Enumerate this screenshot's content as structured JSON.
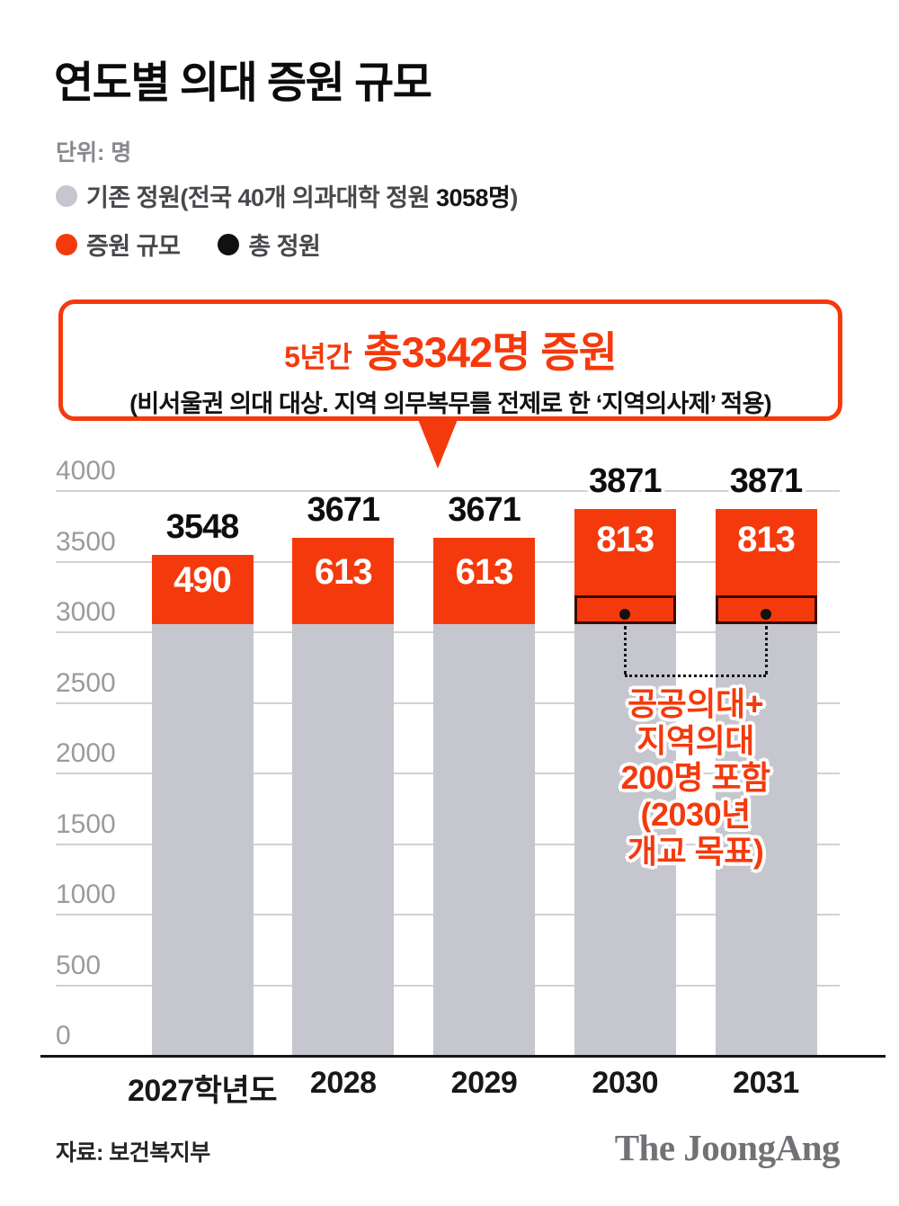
{
  "header": {
    "title": "연도별 의대 증원 규모",
    "unit_label": "단위: 명",
    "legend": {
      "existing": {
        "prefix": "기존 정원(전국 40개 의과대학 정원 ",
        "bold": "3058명",
        "suffix": ")",
        "color": "#c5c6ce"
      },
      "increase": {
        "label": "증원 규모",
        "color": "#f43a0d"
      },
      "total": {
        "label": "총 정원",
        "color": "#111111"
      }
    }
  },
  "callout": {
    "period_label": "5년간",
    "headline": "총3342명 증원",
    "subline": "(비서울권 의대 대상. 지역 의무복무를 전제로 한 ‘지역의사제’ 적용)",
    "border_color": "#f43a0d"
  },
  "chart_data": {
    "type": "bar",
    "stacked": true,
    "title": "연도별 의대 증원 규모",
    "unit": "명",
    "categories": [
      "2027학년도",
      "2028",
      "2029",
      "2030",
      "2031"
    ],
    "series": [
      {
        "name": "기존 정원",
        "color": "#c5c6ce",
        "values": [
          3058,
          3058,
          3058,
          3058,
          3058
        ]
      },
      {
        "name": "증원 규모",
        "color": "#f43a0d",
        "values": [
          490,
          613,
          613,
          813,
          813
        ]
      }
    ],
    "totals": [
      3548,
      3671,
      3671,
      3871,
      3871
    ],
    "ylim": [
      0,
      4000
    ],
    "ytick_interval": 500,
    "grid": true,
    "legend_position": "top",
    "highlight": {
      "bar_indexes": [
        3,
        4
      ],
      "value_from": 3058,
      "value_to": 3258,
      "border_color": "#3b0a00",
      "dot_color": "#111111",
      "note_lines": [
        "공공의대+",
        "지역의대",
        "200명 포함",
        "(2030년",
        "개교 목표)"
      ],
      "note_color": "#f43a0d"
    }
  },
  "footer": {
    "source": "자료: 보건복지부",
    "logo": "The JoongAng"
  }
}
